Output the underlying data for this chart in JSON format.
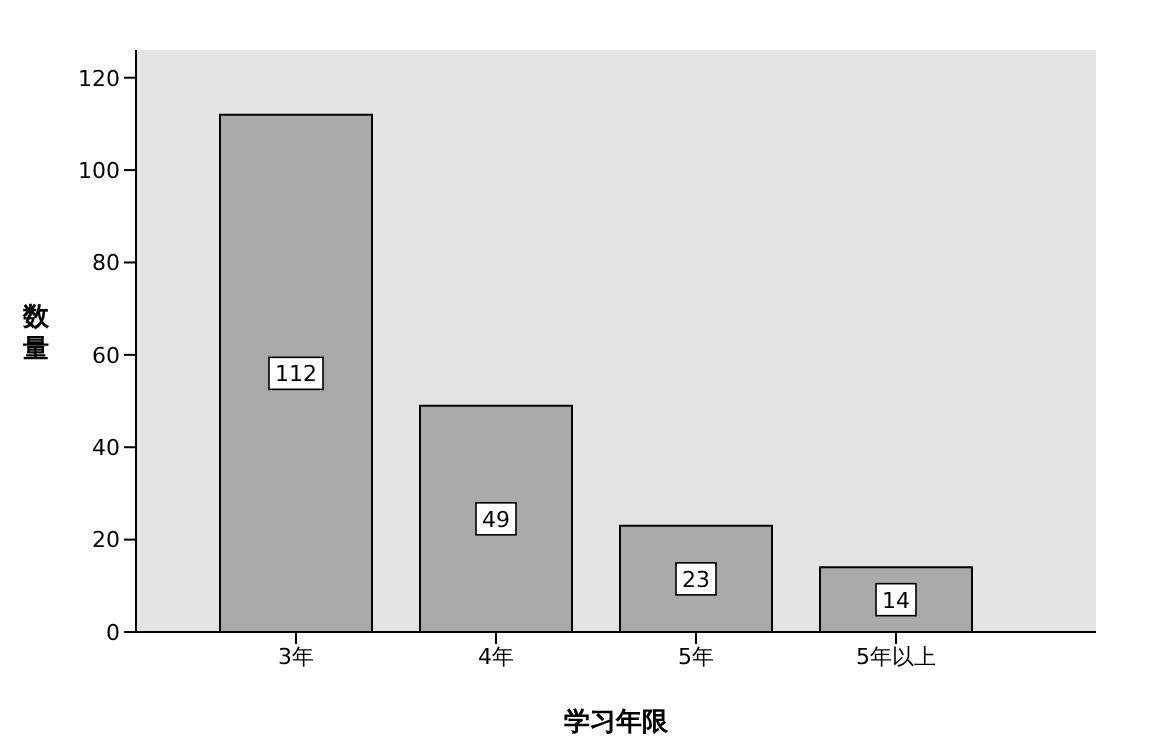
{
  "chart_data": {
    "type": "bar",
    "xlabel": "学习年限",
    "ylabel": "数量",
    "categories": [
      "3年",
      "4年",
      "5年",
      "5年以上"
    ],
    "values": [
      112,
      49,
      23,
      14
    ],
    "color": "#a9a9a9",
    "ylim": [
      0,
      126
    ],
    "yticks": [
      0,
      20,
      40,
      60,
      80,
      100,
      120
    ],
    "grid": false,
    "data_labels": true
  }
}
